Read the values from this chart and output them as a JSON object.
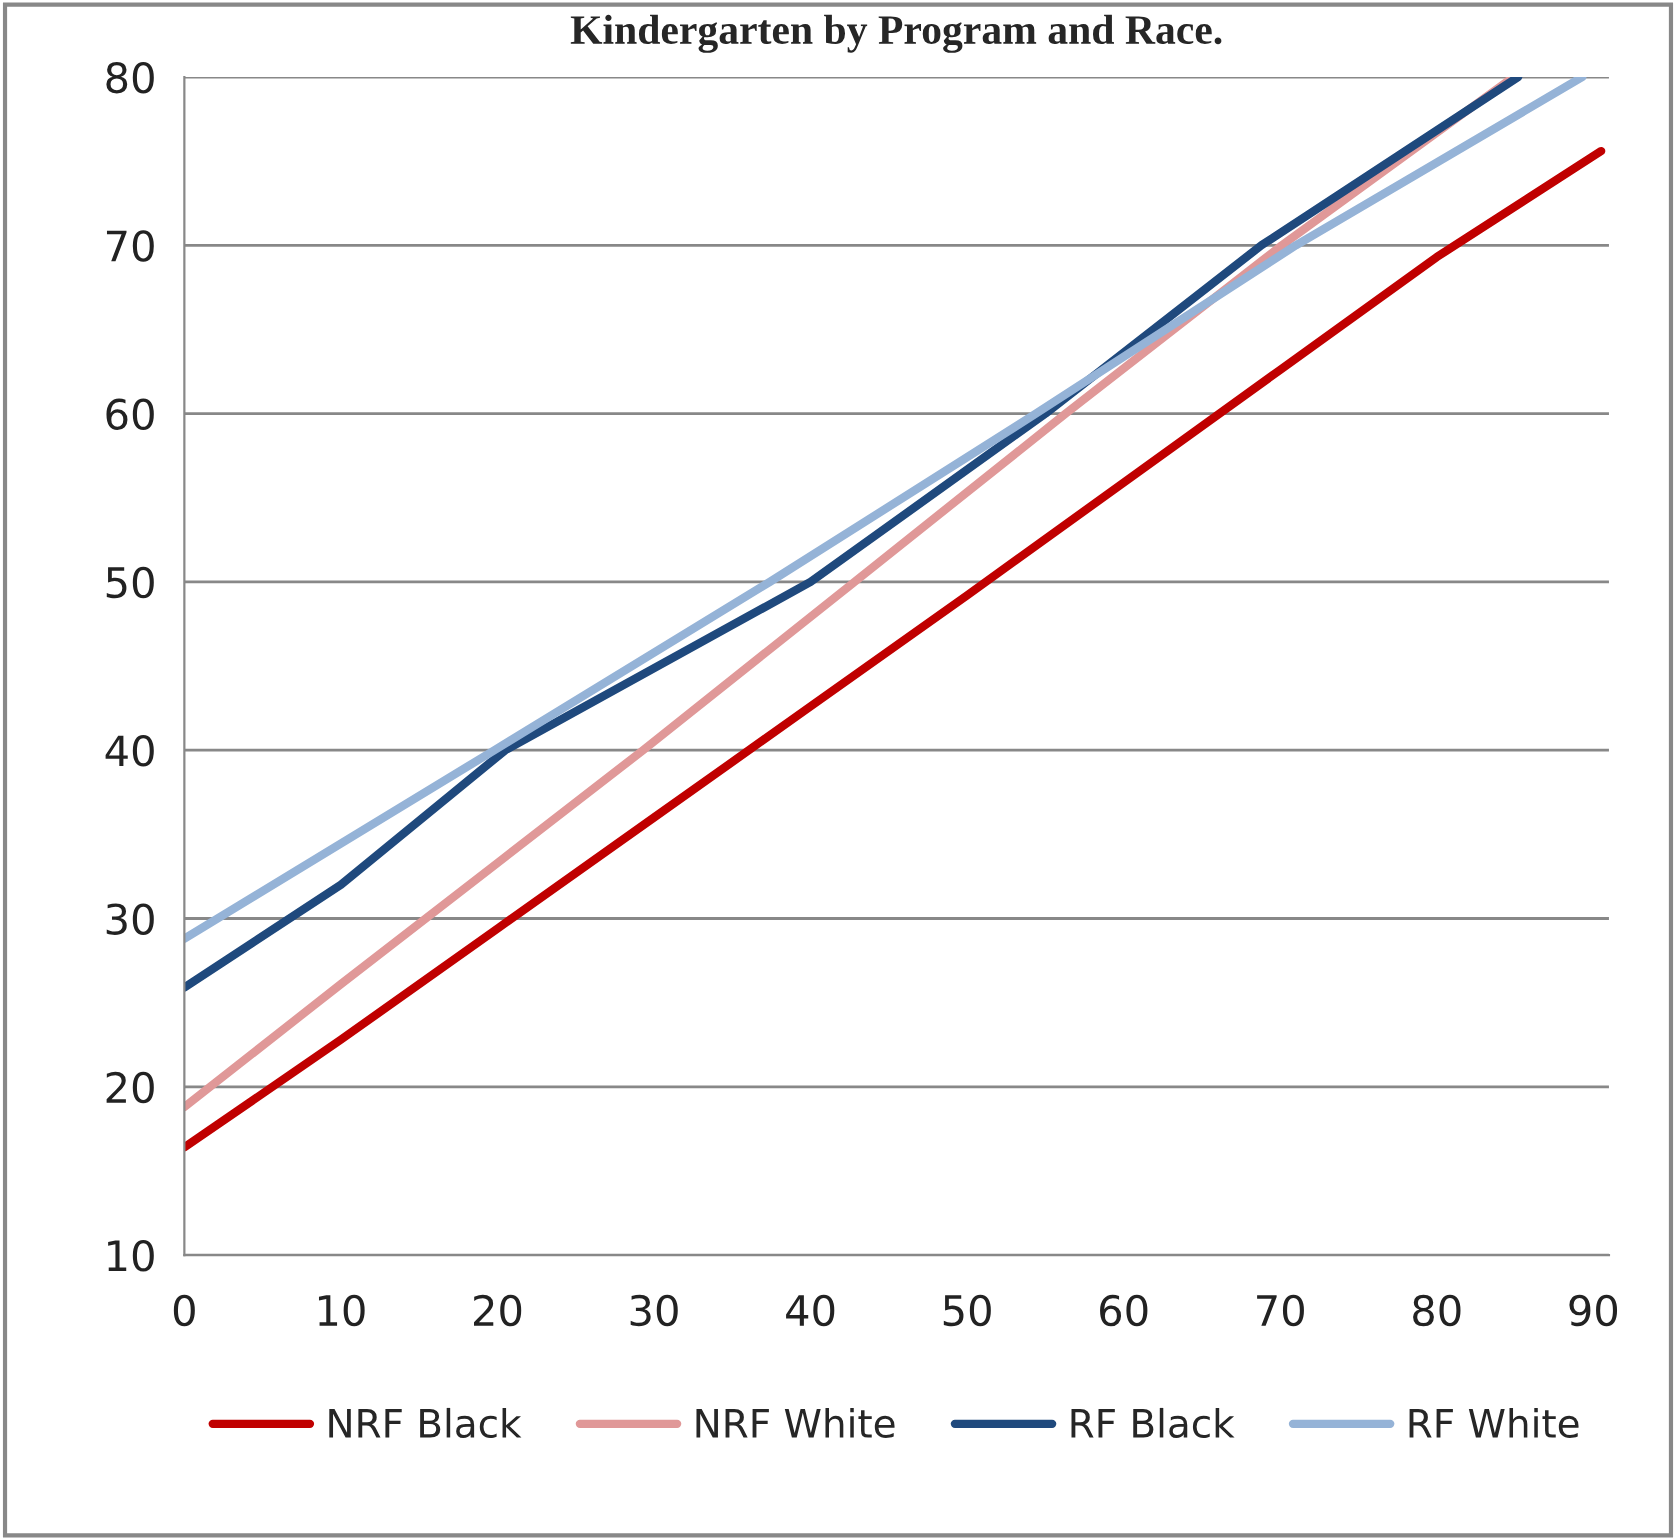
{
  "chart_data": {
    "type": "line",
    "title": "Kindergarten by Program and Race.",
    "xlim": [
      0,
      91
    ],
    "xticks": [
      0,
      10,
      20,
      30,
      40,
      50,
      60,
      70,
      80,
      90
    ],
    "ylim": [
      10,
      80
    ],
    "yticks": [
      10,
      20,
      30,
      40,
      50,
      60,
      70,
      80
    ],
    "grid": "y",
    "legend": "bottom",
    "marker": "none",
    "line_style": "solid",
    "series": [
      {
        "name": "NRF Black",
        "color": "#c00000",
        "x": [
          0,
          10,
          20,
          30,
          40,
          50,
          60,
          70,
          80,
          90.5
        ],
        "values": [
          16.4,
          22.8,
          29.4,
          36,
          42.6,
          49.2,
          55.9,
          62.6,
          69.3,
          75.6
        ]
      },
      {
        "name": "NRF White",
        "color": "#e09898",
        "x": [
          0,
          10,
          20,
          29.3,
          42.8,
          56.3,
          70.1,
          84.9
        ],
        "values": [
          18.8,
          26.1,
          33.3,
          40,
          50,
          60,
          70,
          80
        ]
      },
      {
        "name": "RF Black",
        "color": "#1f497d",
        "x": [
          0,
          10,
          20.5,
          40,
          55,
          68.8,
          85.2
        ],
        "values": [
          25.9,
          32,
          40,
          50,
          60,
          70,
          80
        ]
      },
      {
        "name": "RF White",
        "color": "#95b3d7",
        "x": [
          0,
          19.8,
          37.4,
          54.4,
          71,
          89.3
        ],
        "values": [
          28.8,
          40,
          50,
          60,
          70,
          80
        ]
      }
    ]
  }
}
